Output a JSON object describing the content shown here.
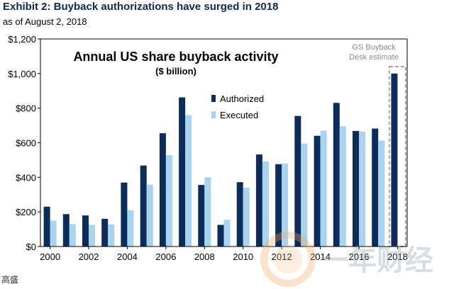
{
  "header": {
    "exhibit_title": "Exhibit 2: Buyback authorizations have surged in 2018",
    "subtitle": "as of August 2, 2018"
  },
  "source_label": "高盛",
  "watermark_text": "一年财经",
  "colors": {
    "authorized": "#0c2d5a",
    "executed": "#a9d3ef",
    "axis": "#000000",
    "title_navy": "#0b2a57",
    "estimate_box": "#a6a6a6"
  },
  "chart_data": {
    "type": "bar",
    "title": "Annual US share buyback activity",
    "subtitle": "($ billion)",
    "categories": [
      "2000",
      "2001",
      "2002",
      "2003",
      "2004",
      "2005",
      "2006",
      "2007",
      "2008",
      "2009",
      "2010",
      "2011",
      "2012",
      "2013",
      "2014",
      "2015",
      "2016",
      "2017",
      "2018"
    ],
    "x_tick_labels": [
      "2000",
      "2002",
      "2004",
      "2006",
      "2008",
      "2010",
      "2012",
      "2014",
      "2016",
      "2018"
    ],
    "series": [
      {
        "name": "Authorized",
        "values": [
          230,
          187,
          180,
          160,
          370,
          468,
          655,
          862,
          356,
          125,
          372,
          532,
          476,
          755,
          640,
          830,
          668,
          682,
          1000
        ]
      },
      {
        "name": "Executed",
        "values": [
          150,
          130,
          125,
          128,
          210,
          358,
          528,
          760,
          400,
          155,
          340,
          492,
          480,
          595,
          670,
          695,
          665,
          612,
          null
        ]
      }
    ],
    "ylim": [
      0,
      1200
    ],
    "y_ticks": [
      0,
      200,
      400,
      600,
      800,
      1000,
      1200
    ],
    "y_tick_labels": [
      "$0",
      "$200",
      "$400",
      "$600",
      "$800",
      "$1,000",
      "$1,200"
    ],
    "legend_position": "center",
    "grid": false,
    "annotation": {
      "line1": "GS Buyback",
      "line2": "Desk estimate"
    }
  }
}
